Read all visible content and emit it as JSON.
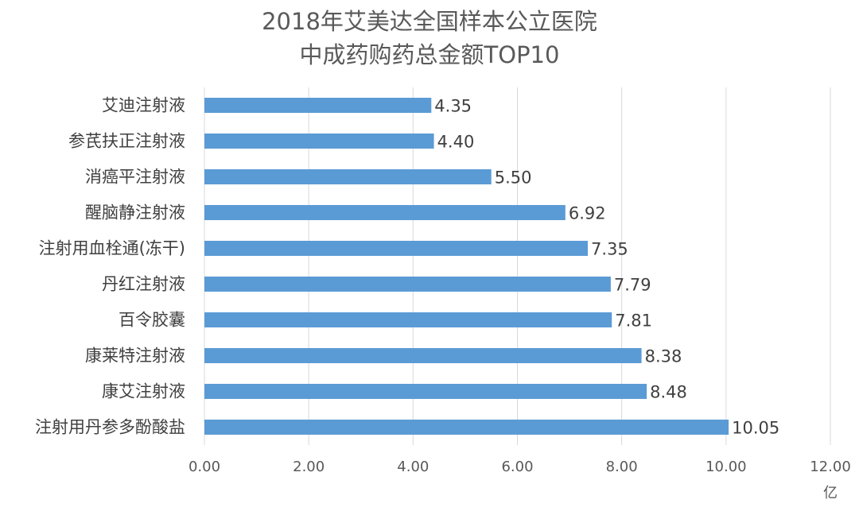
{
  "chart_data": {
    "type": "bar",
    "orientation": "horizontal",
    "title": "2018年艾美达全国样本公立医院",
    "subtitle": "中成药购药总金额TOP10",
    "x_unit": "亿",
    "categories": [
      "艾迪注射液",
      "参芪扶正注射液",
      "消癌平注射液",
      "醒脑静注射液",
      "注射用血栓通(冻干)",
      "丹红注射液",
      "百令胶囊",
      "康莱特注射液",
      "康艾注射液",
      "注射用丹参多酚酸盐"
    ],
    "values": [
      4.35,
      4.4,
      5.5,
      6.92,
      7.35,
      7.79,
      7.81,
      8.38,
      8.48,
      10.05
    ],
    "value_labels": [
      "4.35",
      "4.40",
      "5.50",
      "6.92",
      "7.35",
      "7.79",
      "7.81",
      "8.38",
      "8.48",
      "10.05"
    ],
    "xlim": [
      0,
      12
    ],
    "x_ticks": [
      "0.00",
      "2.00",
      "4.00",
      "6.00",
      "8.00",
      "10.00",
      "12.00"
    ],
    "grid": "vertical",
    "bar_color": "#5B9BD5"
  }
}
